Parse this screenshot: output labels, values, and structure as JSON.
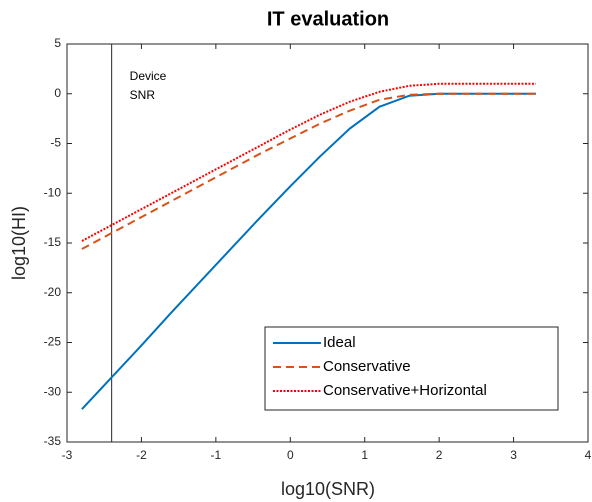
{
  "chart_data": {
    "type": "line",
    "title": "IT evaluation",
    "x_label": "log10(SNR)",
    "y_label": "log10(HI)",
    "x": [
      -2.8,
      -2.4,
      -2,
      -1.6,
      -1.2,
      -0.8,
      -0.4,
      0,
      0.4,
      0.8,
      1.2,
      1.6,
      2.0,
      2.4,
      2.8,
      3.3
    ],
    "series": [
      {
        "name": "Ideal",
        "color": "#0072bd",
        "style": "solid",
        "values": [
          -31.7,
          -28.5,
          -25.3,
          -22.0,
          -18.8,
          -15.6,
          -12.4,
          -9.3,
          -6.3,
          -3.5,
          -1.3,
          -0.2,
          0,
          0,
          0,
          0
        ]
      },
      {
        "name": "Conservative",
        "color": "#d95319",
        "style": "dashed",
        "values": [
          -15.6,
          -14.0,
          -12.4,
          -10.8,
          -9.2,
          -7.6,
          -6.0,
          -4.5,
          -3.0,
          -1.7,
          -0.6,
          -0.1,
          0,
          0,
          0,
          0
        ]
      },
      {
        "name": "Conservative+Horizontal",
        "color": "#ff0000",
        "style": "dotted",
        "values": [
          -14.8,
          -13.2,
          -11.6,
          -10.0,
          -8.4,
          -6.8,
          -5.2,
          -3.6,
          -2.1,
          -0.8,
          0.2,
          0.8,
          1.0,
          1.0,
          1.0,
          1.0
        ]
      }
    ],
    "vline": -2.4,
    "annotation": [
      "Device",
      "SNR"
    ],
    "xlim": [
      -3,
      4
    ],
    "xticks": [
      -3,
      -2,
      -1,
      0,
      1,
      2,
      3,
      4
    ],
    "ylim": [
      -35,
      5
    ],
    "yticks": [
      -35,
      -30,
      -25,
      -20,
      -15,
      -10,
      -5,
      0,
      5
    ],
    "legend": "southeast",
    "grid": false
  }
}
